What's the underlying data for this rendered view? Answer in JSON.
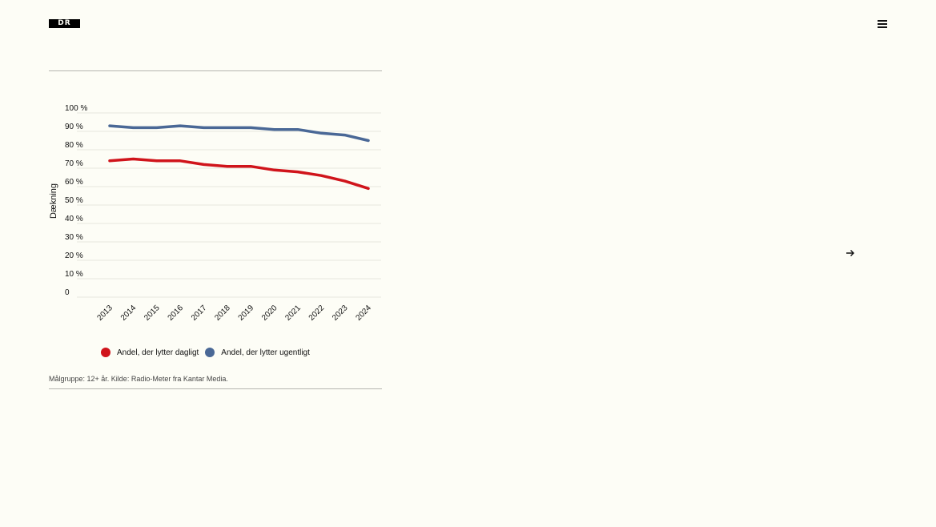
{
  "header": {
    "logo_text": "DR",
    "menu_icon": "hamburger-menu-icon"
  },
  "nav": {
    "next_icon": "arrow-right-icon"
  },
  "chart_data": {
    "type": "line",
    "x": [
      "2013",
      "2014",
      "2015",
      "2016",
      "2017",
      "2018",
      "2019",
      "2020",
      "2021",
      "2022",
      "2023",
      "2024"
    ],
    "series": [
      {
        "name": "Andel, der lytter dagligt",
        "color": "#d0141b",
        "values": [
          74,
          75,
          74,
          74,
          72,
          71,
          71,
          69,
          68,
          66,
          63,
          59
        ]
      },
      {
        "name": "Andel, der lytter ugentligt",
        "color": "#4a6896",
        "values": [
          93,
          92,
          92,
          93,
          92,
          92,
          92,
          91,
          91,
          89,
          88,
          85
        ]
      }
    ],
    "ylabel": "Dækning",
    "ylim": [
      0,
      100
    ],
    "yticks": [
      0,
      10,
      20,
      30,
      40,
      50,
      60,
      70,
      80,
      90,
      100
    ],
    "ytick_labels": [
      "0",
      "10 %",
      "20 %",
      "30 %",
      "40 %",
      "50 %",
      "60 %",
      "70 %",
      "80 %",
      "90 %",
      "100 %"
    ],
    "grid": true,
    "legend_position": "bottom"
  },
  "source_note": "Målgruppe: 12+ år. Kilde: Radio-Meter fra Kantar Media."
}
